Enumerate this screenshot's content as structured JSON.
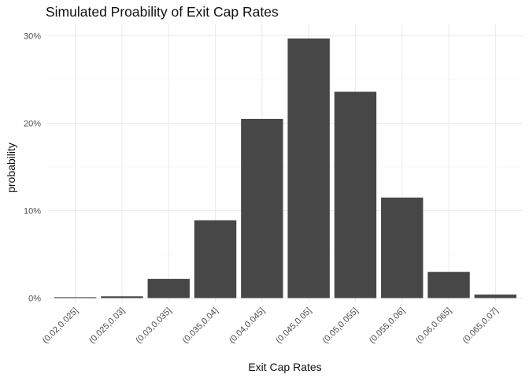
{
  "chart_data": {
    "type": "bar",
    "title": "Simulated Proability of Exit Cap Rates",
    "xlabel": "Exit Cap Rates",
    "ylabel": "probability",
    "categories": [
      "(0.02,0.025]",
      "(0.025,0.03]",
      "(0.03,0.035]",
      "(0.035,0.04]",
      "(0.04,0.045]",
      "(0.045,0.05]",
      "(0.05,0.055]",
      "(0.055,0.06]",
      "(0.06,0.065]",
      "(0.065,0.07]"
    ],
    "values": [
      0.001,
      0.002,
      0.022,
      0.089,
      0.205,
      0.297,
      0.236,
      0.115,
      0.03,
      0.004
    ],
    "ylim": [
      0,
      0.3
    ],
    "yticks": [
      0,
      0.1,
      0.2,
      0.3
    ],
    "ytick_labels": [
      "0%",
      "10%",
      "20%",
      "30%"
    ],
    "grid": true,
    "bar_color": "#474747",
    "background": "#ffffff"
  }
}
